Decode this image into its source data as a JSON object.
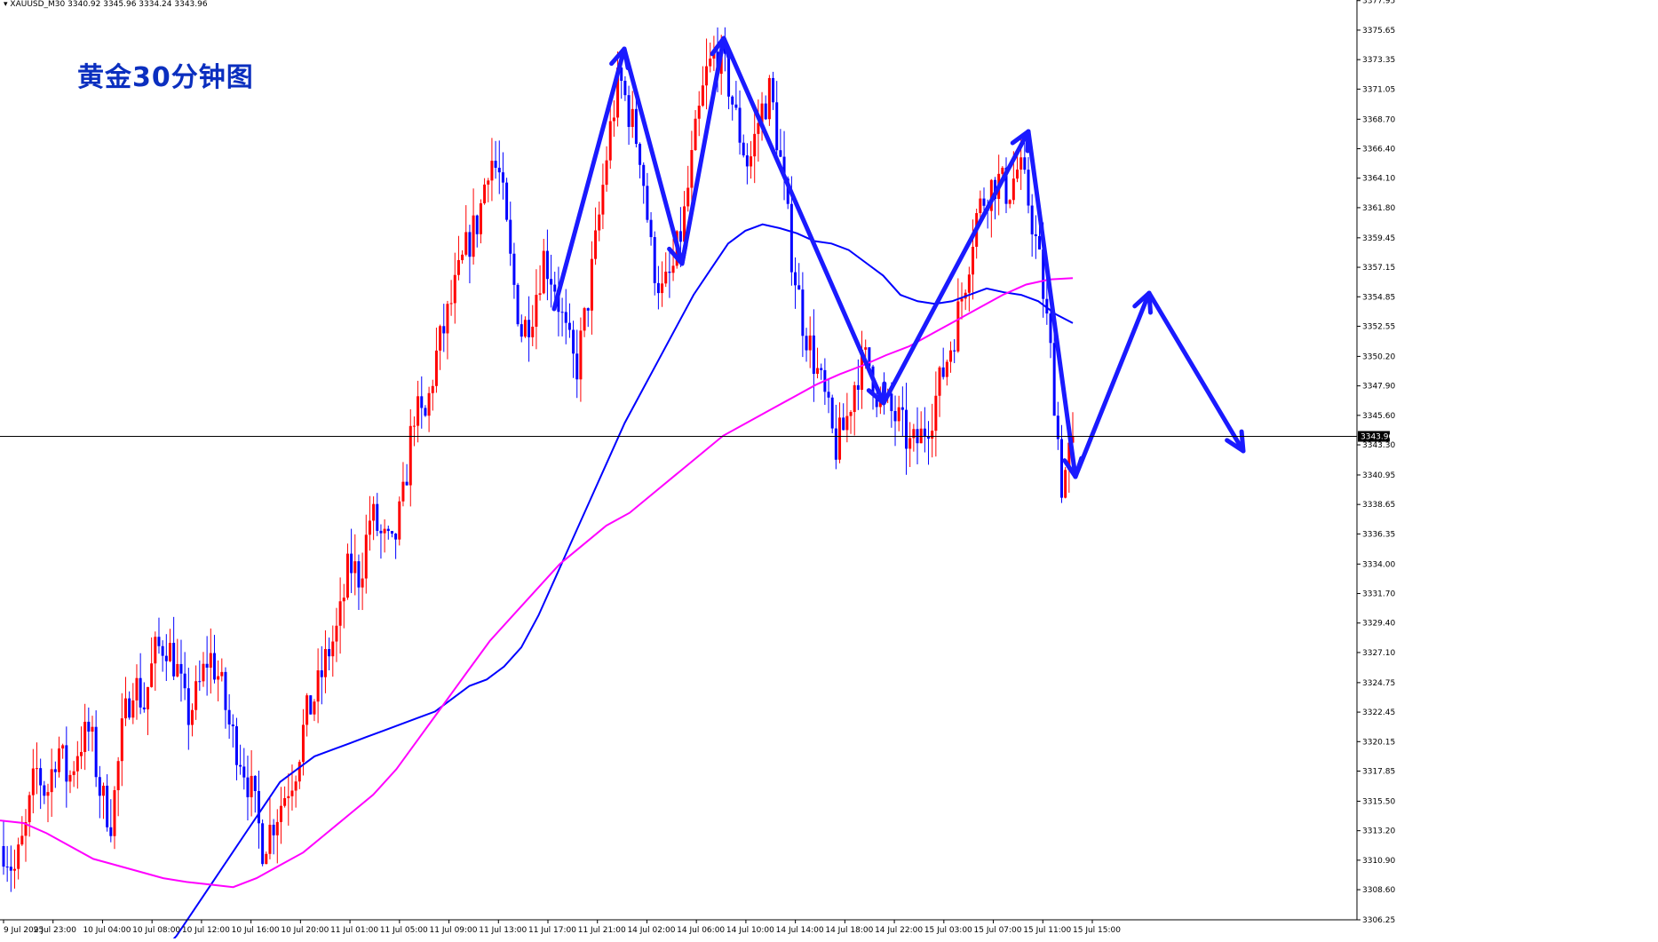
{
  "header": {
    "symbol": "XAUUSD_M30",
    "ohlc": "3340.92 3345.96 3334.24 3343.96"
  },
  "overlay_title": "黄金30分钟图",
  "colors": {
    "bull": "#ff0000",
    "bear": "#0000ff",
    "ma_fast": "#0000ff",
    "ma_slow": "#ff00ff",
    "annotation": "#1a1aff",
    "axis": "#000000",
    "current_price_line": "#000000"
  },
  "chart_data": {
    "type": "candlestick",
    "title": "",
    "xlabel": "",
    "ylabel": "",
    "ylim": [
      3306.25,
      3378.0
    ],
    "grid": false,
    "y_ticks": [
      "3377.95",
      "3375.65",
      "3373.35",
      "3371.05",
      "3368.70",
      "3366.40",
      "3364.10",
      "3361.80",
      "3359.45",
      "3357.15",
      "3354.85",
      "3352.55",
      "3350.20",
      "3347.90",
      "3345.60",
      "3343.30",
      "3340.95",
      "3338.65",
      "3336.35",
      "3334.00",
      "3331.70",
      "3329.40",
      "3327.10",
      "3324.75",
      "3322.45",
      "3320.15",
      "3317.85",
      "3315.50",
      "3313.20",
      "3310.90",
      "3308.60",
      "3306.25"
    ],
    "x_ticks": [
      "9 Jul 2025",
      "9 Jul 23:00",
      "10 Jul 04:00",
      "10 Jul 08:00",
      "10 Jul 12:00",
      "10 Jul 16:00",
      "10 Jul 20:00",
      "11 Jul 01:00",
      "11 Jul 05:00",
      "11 Jul 09:00",
      "11 Jul 13:00",
      "11 Jul 17:00",
      "11 Jul 21:00",
      "14 Jul 02:00",
      "14 Jul 06:00",
      "14 Jul 10:00",
      "14 Jul 14:00",
      "14 Jul 18:00",
      "14 Jul 22:00",
      "15 Jul 03:00",
      "15 Jul 07:00",
      "15 Jul 11:00",
      "15 Jul 15:00"
    ],
    "current_price": 3343.96,
    "current_price_label": "3343.96",
    "path": [
      3312,
      3310,
      3313,
      3318,
      3316,
      3320,
      3317,
      3320,
      3321,
      3316,
      3314,
      3321,
      3325,
      3323,
      3327,
      3328,
      3326,
      3322,
      3324,
      3327,
      3325,
      3321,
      3319,
      3316,
      3312,
      3314,
      3316,
      3318,
      3322,
      3324,
      3327,
      3329,
      3334,
      3333,
      3338,
      3336,
      3335,
      3339,
      3346,
      3345,
      3350,
      3353,
      3356,
      3359,
      3361,
      3366,
      3364,
      3357,
      3352,
      3354,
      3358,
      3356,
      3352,
      3349,
      3354,
      3360,
      3367,
      3372,
      3369,
      3366,
      3358,
      3355,
      3357,
      3361,
      3367,
      3372,
      3374,
      3372,
      3368,
      3365,
      3369,
      3371,
      3365,
      3358,
      3353,
      3350,
      3347,
      3343,
      3345,
      3349,
      3350,
      3347,
      3346,
      3345,
      3343,
      3344,
      3346,
      3349,
      3352,
      3356,
      3361,
      3363,
      3364,
      3363,
      3365,
      3362,
      3357,
      3350,
      3340,
      3343.96
    ],
    "ma_fast_path": [
      3303,
      3303.5,
      3305,
      3307,
      3309,
      3311,
      3313,
      3315,
      3317,
      3318,
      3319,
      3319.5,
      3320,
      3320.5,
      3321,
      3321.5,
      3322,
      3322.5,
      3323.5,
      3324.5,
      3325,
      3326,
      3327.5,
      3330,
      3333,
      3336,
      3339,
      3342,
      3345,
      3347.5,
      3350,
      3352.5,
      3355,
      3357,
      3359,
      3360,
      3360.5,
      3360.2,
      3359.8,
      3359.2,
      3359,
      3358.5,
      3357.5,
      3356.5,
      3355,
      3354.5,
      3354.3,
      3354.5,
      3355,
      3355.5,
      3355.2,
      3355,
      3354.5,
      3353.5,
      3352.8
    ],
    "ma_slow_path": [
      3314,
      3313.8,
      3313,
      3312,
      3311,
      3310.5,
      3310,
      3309.5,
      3309.2,
      3309,
      3308.8,
      3309.5,
      3310.5,
      3311.5,
      3313,
      3314.5,
      3316,
      3318,
      3320.5,
      3323,
      3325.5,
      3328,
      3330,
      3332,
      3334,
      3335.5,
      3337,
      3338,
      3339.5,
      3341,
      3342.5,
      3344,
      3345,
      3346,
      3347,
      3348,
      3348.8,
      3349.5,
      3350.3,
      3351,
      3352,
      3353,
      3354,
      3355,
      3355.8,
      3356.2,
      3356.3
    ]
  },
  "annotations": {
    "label": "drawn zig-zag arrows",
    "zigzag_past": [
      [
        624,
        348
      ],
      [
        703,
        55
      ],
      [
        768,
        297
      ],
      [
        815,
        43
      ],
      [
        995,
        454
      ],
      [
        1158,
        148
      ],
      [
        1211,
        537
      ]
    ],
    "zigzag_projection": [
      [
        1211,
        537
      ],
      [
        1294,
        330
      ],
      [
        1400,
        508
      ]
    ]
  }
}
